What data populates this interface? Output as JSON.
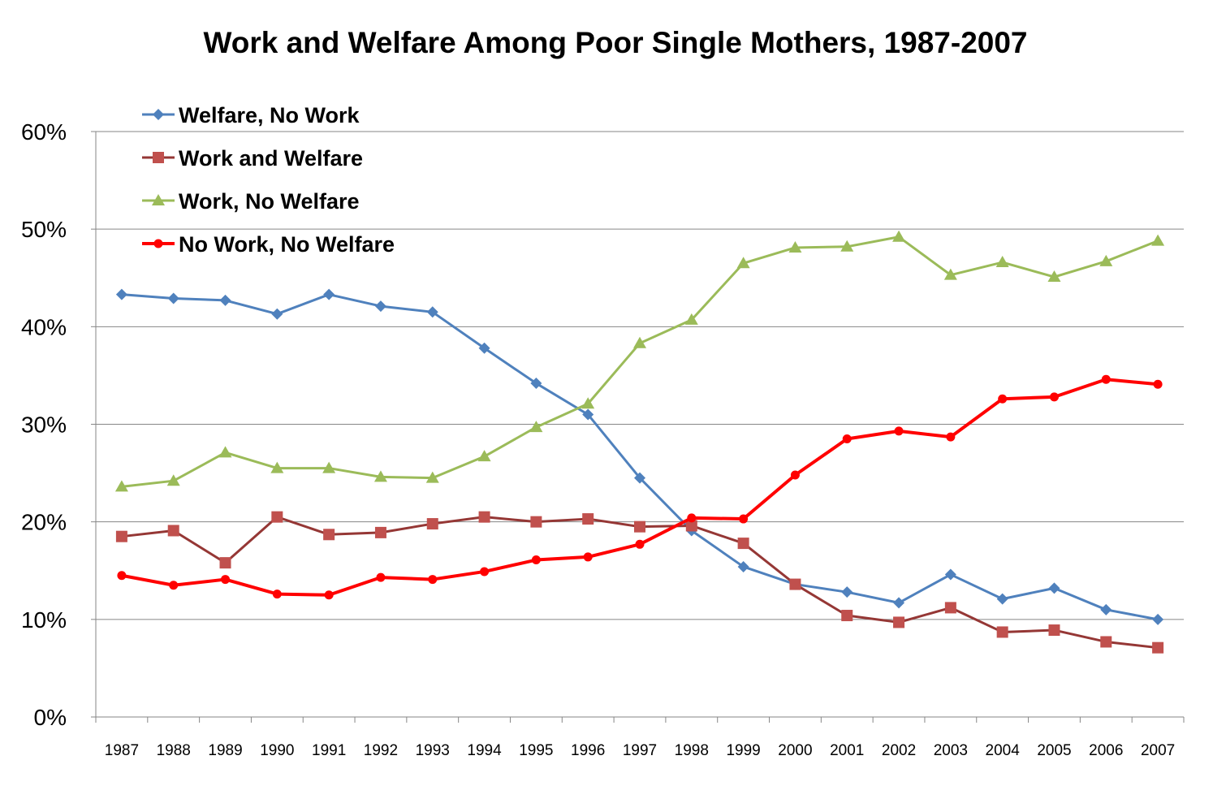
{
  "chart_data": {
    "type": "line",
    "title": "Work and Welfare Among Poor Single Mothers, 1987-2007",
    "xlabel": "",
    "ylabel": "",
    "ylim": [
      0,
      60
    ],
    "yticks": [
      "0%",
      "10%",
      "20%",
      "30%",
      "40%",
      "50%",
      "60%"
    ],
    "grid": true,
    "legend_position": "top-left",
    "categories": [
      "1987",
      "1988",
      "1989",
      "1990",
      "1991",
      "1992",
      "1993",
      "1994",
      "1995",
      "1996",
      "1997",
      "1998",
      "1999",
      "2000",
      "2001",
      "2002",
      "2003",
      "2004",
      "2005",
      "2006",
      "2007"
    ],
    "series": [
      {
        "name": "Welfare, No Work",
        "color": "#4F81BD",
        "marker": "diamond",
        "values": [
          43.3,
          42.9,
          42.7,
          41.3,
          43.3,
          42.1,
          41.5,
          37.8,
          34.2,
          31.0,
          24.5,
          19.1,
          15.4,
          13.6,
          12.8,
          11.7,
          14.6,
          12.1,
          13.2,
          11.0,
          10.0
        ]
      },
      {
        "name": "Work and Welfare",
        "color": "#953735",
        "marker_color": "#C0504D",
        "marker": "square",
        "values": [
          18.5,
          19.1,
          15.8,
          20.5,
          18.7,
          18.9,
          19.8,
          20.5,
          20.0,
          20.3,
          19.5,
          19.6,
          17.8,
          13.6,
          10.4,
          9.7,
          11.2,
          8.7,
          8.9,
          7.7,
          7.1
        ]
      },
      {
        "name": "Work, No Welfare",
        "color": "#9BBB59",
        "marker": "triangle",
        "values": [
          23.6,
          24.2,
          27.1,
          25.5,
          25.5,
          24.6,
          24.5,
          26.7,
          29.7,
          32.1,
          38.3,
          40.7,
          46.5,
          48.1,
          48.2,
          49.2,
          45.3,
          46.6,
          45.1,
          46.7,
          48.8
        ]
      },
      {
        "name": "No Work, No Welfare",
        "color": "#FF0000",
        "marker": "circle",
        "values": [
          14.5,
          13.5,
          14.1,
          12.6,
          12.5,
          14.3,
          14.1,
          14.9,
          16.1,
          16.4,
          17.7,
          20.4,
          20.3,
          24.8,
          28.5,
          29.3,
          28.7,
          32.6,
          32.8,
          34.6,
          34.1
        ]
      }
    ]
  }
}
